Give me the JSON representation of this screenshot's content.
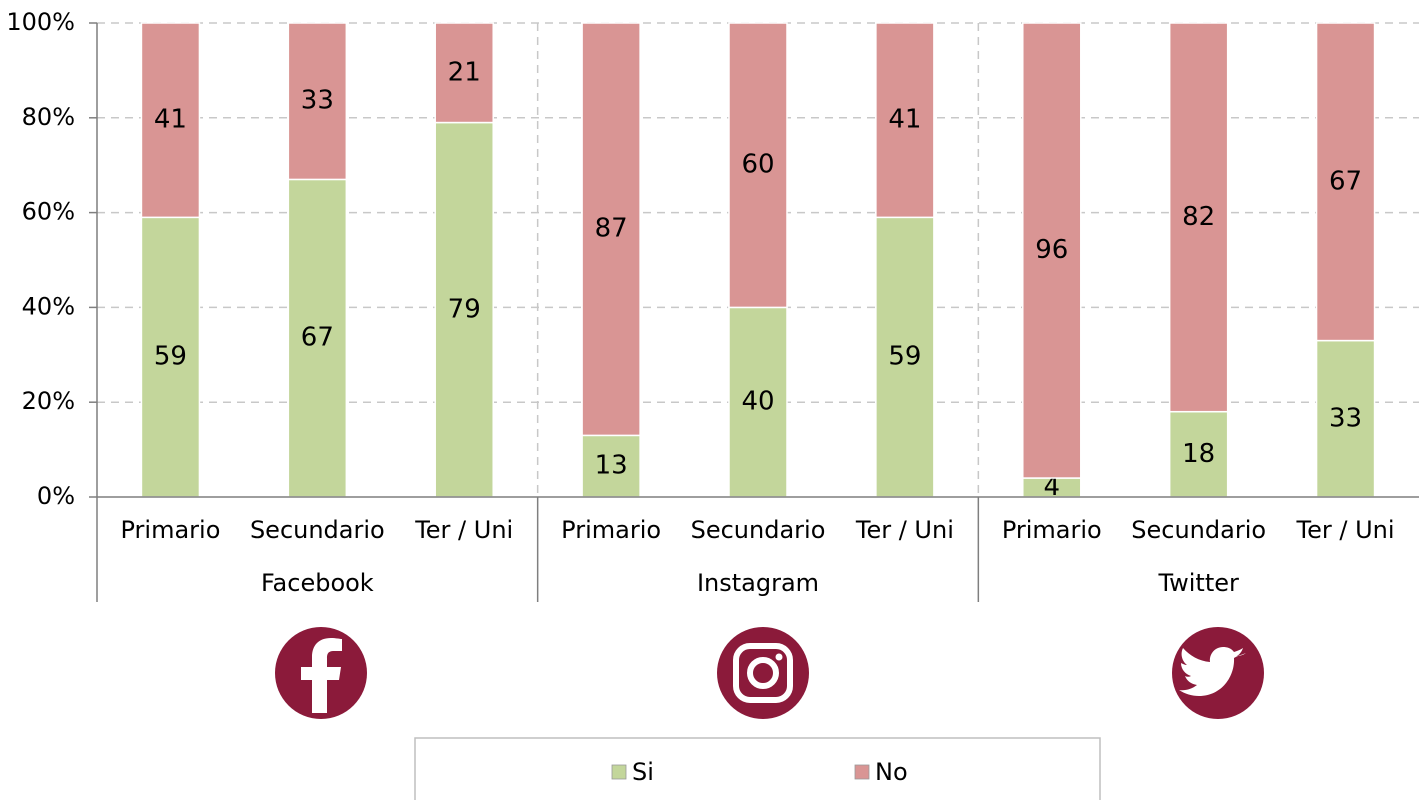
{
  "chart_data": {
    "type": "stacked_bar",
    "categories": [
      "Primario",
      "Secundario",
      "Ter / Uni",
      "Primario",
      "Secundario",
      "Ter / Uni",
      "Primario",
      "Secundario",
      "Ter / Uni"
    ],
    "groups": [
      "Facebook",
      "Instagram",
      "Twitter"
    ],
    "series": [
      {
        "name": "Si",
        "color": "#c3d69b",
        "values": [
          59,
          67,
          79,
          13,
          40,
          59,
          4,
          18,
          33
        ]
      },
      {
        "name": "No",
        "color": "#d99594",
        "values": [
          41,
          33,
          21,
          87,
          60,
          41,
          96,
          82,
          67
        ]
      }
    ],
    "ylim": [
      0,
      100
    ],
    "yticks": [
      {
        "value": 0,
        "label": "0%"
      },
      {
        "value": 20,
        "label": "20%"
      },
      {
        "value": 40,
        "label": "40%"
      },
      {
        "value": 60,
        "label": "60%"
      },
      {
        "value": 80,
        "label": "80%"
      },
      {
        "value": 100,
        "label": "100%"
      }
    ],
    "grid": true
  }
}
